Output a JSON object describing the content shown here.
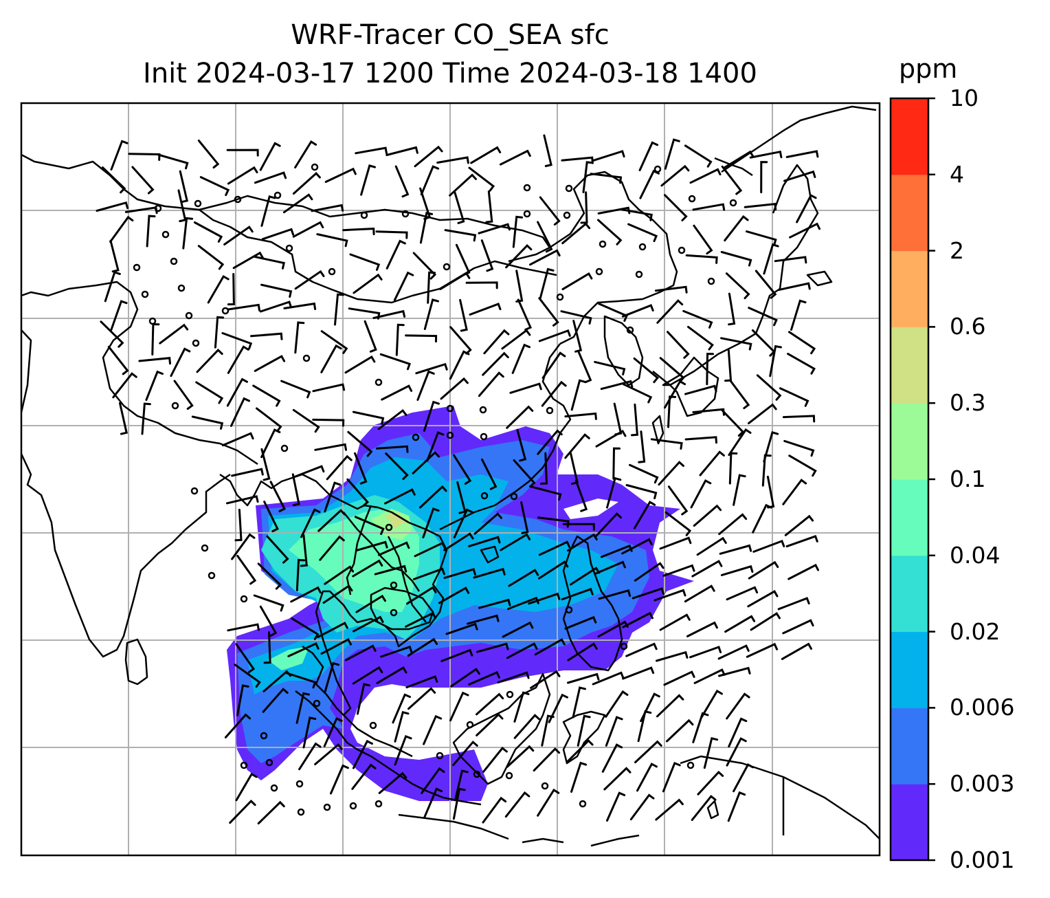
{
  "title": {
    "line1": "WRF-Tracer CO_SEA sfc",
    "line2": "Init 2024-03-17 1200 Time 2024-03-18 1400"
  },
  "colorbar": {
    "unit": "ppm",
    "levels": [
      "0.001",
      "0.003",
      "0.006",
      "0.02",
      "0.04",
      "0.1",
      "0.3",
      "0.6",
      "2",
      "4",
      "10"
    ],
    "colors": [
      "#6229fb",
      "#3476f6",
      "#03b2ea",
      "#33e0d3",
      "#66fdbc",
      "#9cfa97",
      "#cfe085",
      "#ffae60",
      "#ff7038",
      "#ff2914"
    ]
  },
  "map": {
    "features": [
      "coastlines",
      "country-borders",
      "gridlines",
      "wind-barbs",
      "CO_SEA-tracer-field"
    ],
    "gridline_color": "#b0b0b0"
  }
}
